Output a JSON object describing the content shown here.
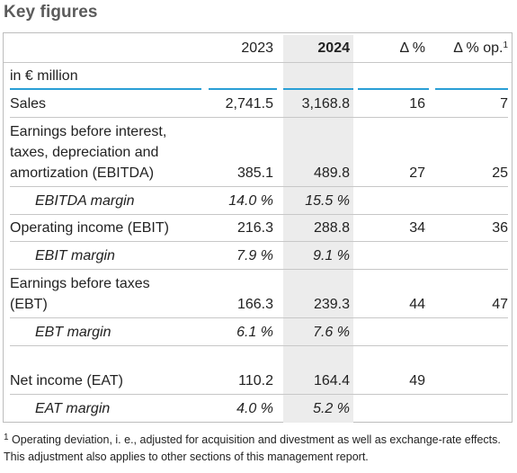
{
  "title": "Key figures",
  "header": {
    "col_2023": "2023",
    "col_2024": "2024",
    "col_delta": "Δ %",
    "col_delta_op": "Δ % op.",
    "col_delta_op_sup": "1"
  },
  "unit": "in € million",
  "rows": [
    {
      "label": "Sales",
      "v2023": "2,741.5",
      "v2024": "3,168.8",
      "delta": "16",
      "delta_op": "7"
    },
    {
      "label_line1": "Earnings before interest,",
      "label_line2": "taxes, depreciation and",
      "label_line3": "amortization (EBITDA)",
      "v2023": "385.1",
      "v2024": "489.8",
      "delta": "27",
      "delta_op": "25"
    },
    {
      "label": "EBITDA margin",
      "v2023": "14.0 %",
      "v2024": "15.5 %"
    },
    {
      "label": "Operating income (EBIT)",
      "v2023": "216.3",
      "v2024": "288.8",
      "delta": "34",
      "delta_op": "36"
    },
    {
      "label": "EBIT margin",
      "v2023": "7.9 %",
      "v2024": "9.1 %"
    },
    {
      "label_line1": "Earnings before taxes",
      "label_line2": "(EBT)",
      "v2023": "166.3",
      "v2024": "239.3",
      "delta": "44",
      "delta_op": "47"
    },
    {
      "label": "EBT margin",
      "v2023": "6.1 %",
      "v2024": "7.6 %"
    },
    {
      "label": "Net income (EAT)",
      "v2023": "110.2",
      "v2024": "164.4",
      "delta": "49"
    },
    {
      "label": "EAT margin",
      "v2023": "4.0 %",
      "v2024": "5.2 %"
    }
  ],
  "footnote": {
    "marker": "1",
    "text": "Operating deviation, i. e., adjusted for acquisition and divestment as well as exchange-rate effects. This adjustment also applies to other sections of this management report."
  }
}
